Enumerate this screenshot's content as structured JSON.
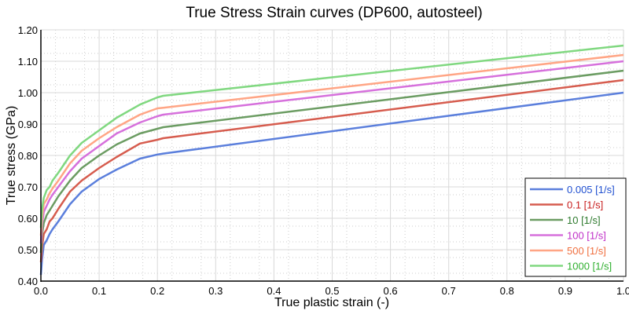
{
  "chart_data": {
    "type": "line",
    "title": "True Stress Strain curves (DP600, autosteel)",
    "xlabel": "True plastic strain (-)",
    "ylabel": "True stress (GPa)",
    "xlim": [
      0,
      1.0
    ],
    "ylim": [
      0.4,
      1.2
    ],
    "x_ticks": [
      "0.0",
      "0.1",
      "0.2",
      "0.3",
      "0.4",
      "0.5",
      "0.6",
      "0.7",
      "0.8",
      "0.9",
      "1.0"
    ],
    "y_ticks": [
      "0.40",
      "0.50",
      "0.60",
      "0.70",
      "0.80",
      "0.90",
      "1.00",
      "1.10",
      "1.20"
    ],
    "grid": true,
    "legend_position": "bottom-right",
    "x": [
      0,
      0.002,
      0.005,
      0.01,
      0.015,
      0.02,
      0.03,
      0.05,
      0.07,
      0.1,
      0.13,
      0.17,
      0.2,
      0.21,
      1.0
    ],
    "series": [
      {
        "name": "0.005 [1/s]",
        "color": "#5b7fdc",
        "text_color": "#1f4fd0",
        "values": [
          0.42,
          0.47,
          0.515,
          0.53,
          0.55,
          0.565,
          0.59,
          0.645,
          0.685,
          0.725,
          0.755,
          0.79,
          0.803,
          0.806,
          1.0
        ]
      },
      {
        "name": "0.1 [1/s]",
        "color": "#d65c4e",
        "text_color": "#c82020",
        "values": [
          0.46,
          0.51,
          0.55,
          0.565,
          0.59,
          0.6,
          0.63,
          0.685,
          0.72,
          0.76,
          0.795,
          0.838,
          0.85,
          0.855,
          1.04
        ]
      },
      {
        "name": "10 [1/s]",
        "color": "#6b9c62",
        "text_color": "#2e7a2e",
        "values": [
          0.49,
          0.55,
          0.585,
          0.61,
          0.625,
          0.64,
          0.67,
          0.72,
          0.76,
          0.8,
          0.835,
          0.87,
          0.885,
          0.89,
          1.07
        ]
      },
      {
        "name": "100 [1/s]",
        "color": "#d670dc",
        "text_color": "#c030c8",
        "values": [
          0.52,
          0.58,
          0.62,
          0.64,
          0.66,
          0.675,
          0.7,
          0.75,
          0.79,
          0.83,
          0.87,
          0.905,
          0.925,
          0.93,
          1.1
        ]
      },
      {
        "name": "500 [1/s]",
        "color": "#ffa585",
        "text_color": "#f07040",
        "values": [
          0.545,
          0.6,
          0.645,
          0.66,
          0.68,
          0.695,
          0.72,
          0.775,
          0.815,
          0.855,
          0.89,
          0.93,
          0.95,
          0.952,
          1.12
        ]
      },
      {
        "name": "1000 [1/s]",
        "color": "#80d880",
        "text_color": "#30b030",
        "values": [
          0.57,
          0.63,
          0.665,
          0.69,
          0.7,
          0.72,
          0.745,
          0.8,
          0.84,
          0.88,
          0.92,
          0.962,
          0.985,
          0.99,
          1.15
        ]
      }
    ]
  }
}
